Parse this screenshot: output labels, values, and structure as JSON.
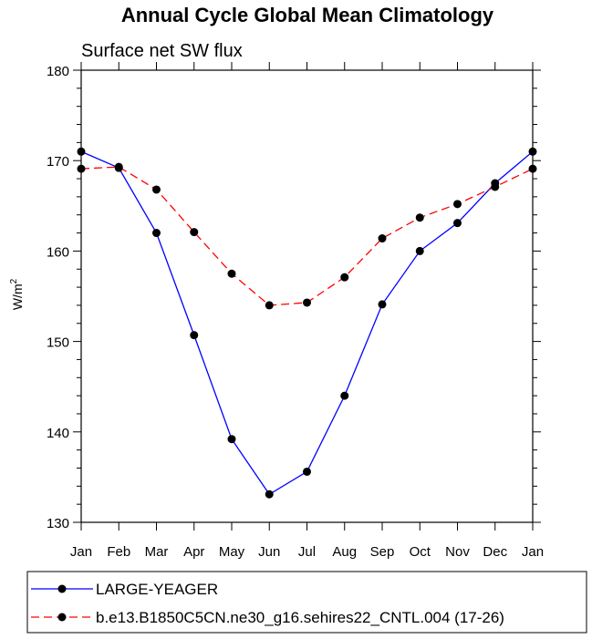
{
  "chart_data": {
    "type": "line",
    "title": "Annual Cycle Global Mean Climatology",
    "subtitle": "Surface net SW flux",
    "ylabel": "W/m",
    "ylabel_sup": "2",
    "xlabel": "",
    "categories": [
      "Jan",
      "Feb",
      "Mar",
      "Apr",
      "May",
      "Jun",
      "Jul",
      "Aug",
      "Sep",
      "Oct",
      "Nov",
      "Dec",
      "Jan"
    ],
    "ylim": [
      130,
      180
    ],
    "yticks": [
      130,
      140,
      150,
      160,
      170,
      180
    ],
    "grid": false,
    "legend_position": "bottom",
    "series": [
      {
        "name": "LARGE-YEAGER",
        "color": "#0000ff",
        "dash": "solid",
        "marker": "filled-circle",
        "values": [
          171.0,
          169.2,
          162.0,
          150.7,
          139.2,
          133.1,
          135.6,
          144.0,
          154.1,
          160.0,
          163.1,
          167.5,
          171.0
        ]
      },
      {
        "name": "b.e13.B1850C5CN.ne30_g16.sehires22_CNTL.004 (17-26)",
        "color": "#ff0000",
        "dash": "dashed",
        "marker": "filled-circle",
        "values": [
          169.1,
          169.3,
          166.8,
          162.1,
          157.5,
          154.0,
          154.3,
          157.1,
          161.4,
          163.7,
          165.2,
          167.1,
          169.1
        ]
      }
    ]
  }
}
